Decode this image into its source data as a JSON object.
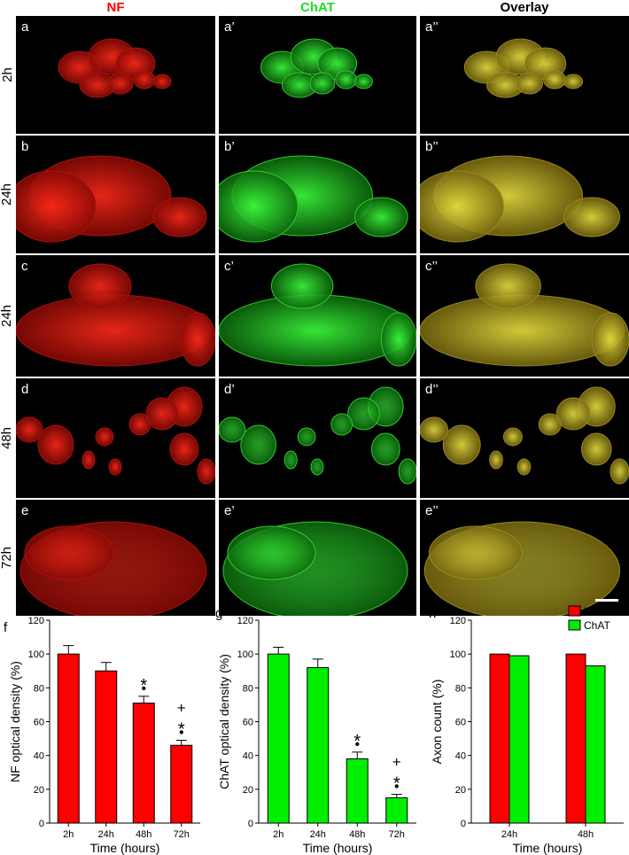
{
  "headers": {
    "nf": "NF",
    "chat": "ChAT",
    "overlay": "Overlay"
  },
  "colors": {
    "nf": "#ff0000",
    "chat": "#22dd22",
    "overlay": "#000000",
    "bar_nf": "#ff0000",
    "bar_chat": "#00ee00"
  },
  "rows": [
    {
      "time": "2h",
      "labels": [
        "a",
        "a’",
        "a’’"
      ]
    },
    {
      "time": "24h",
      "labels": [
        "b",
        "b’",
        "b’’"
      ]
    },
    {
      "time": "24h",
      "labels": [
        "c",
        "c’",
        "c’’"
      ]
    },
    {
      "time": "48h",
      "labels": [
        "d",
        "d’",
        "d’’"
      ]
    },
    {
      "time": "72h",
      "labels": [
        "e",
        "e’",
        "e’’"
      ]
    }
  ],
  "graph_letters": {
    "f": "f",
    "g": "g",
    "h": "h"
  },
  "chart_data": [
    {
      "type": "bar",
      "categories": [
        "2h",
        "24h",
        "48h",
        "72h"
      ],
      "values": [
        100,
        90,
        71,
        46
      ],
      "errors": [
        5,
        5,
        4,
        3
      ],
      "annotations": [
        [],
        [],
        [
          "•",
          "*"
        ],
        [
          "•",
          "*",
          "+"
        ]
      ],
      "xlabel": "Time (hours)",
      "ylabel": "NF optical density (%)",
      "ylim": [
        0,
        120
      ],
      "yticks": [
        "0",
        "20",
        "40",
        "60",
        "80",
        "100",
        "120"
      ]
    },
    {
      "type": "bar",
      "categories": [
        "2h",
        "24h",
        "48h",
        "72h"
      ],
      "values": [
        100,
        92,
        38,
        15
      ],
      "errors": [
        4,
        5,
        4,
        2
      ],
      "annotations": [
        [],
        [],
        [
          "•",
          "*"
        ],
        [
          "•",
          "*",
          "+"
        ]
      ],
      "xlabel": "Time (hours)",
      "ylabel": "ChAT optical density (%)",
      "ylim": [
        0,
        120
      ],
      "yticks": [
        "0",
        "20",
        "40",
        "60",
        "80",
        "100",
        "120"
      ]
    },
    {
      "type": "bar",
      "categories": [
        "24h",
        "48h"
      ],
      "series": [
        {
          "name": "NF",
          "values": [
            100,
            100
          ]
        },
        {
          "name": "ChAT",
          "values": [
            99,
            93
          ]
        }
      ],
      "xlabel": "Time (hours)",
      "ylabel": "Axon count (%)",
      "ylim": [
        0,
        120
      ],
      "yticks": [
        "0",
        "20",
        "40",
        "60",
        "80",
        "100",
        "120"
      ],
      "legend": "top-right"
    }
  ]
}
